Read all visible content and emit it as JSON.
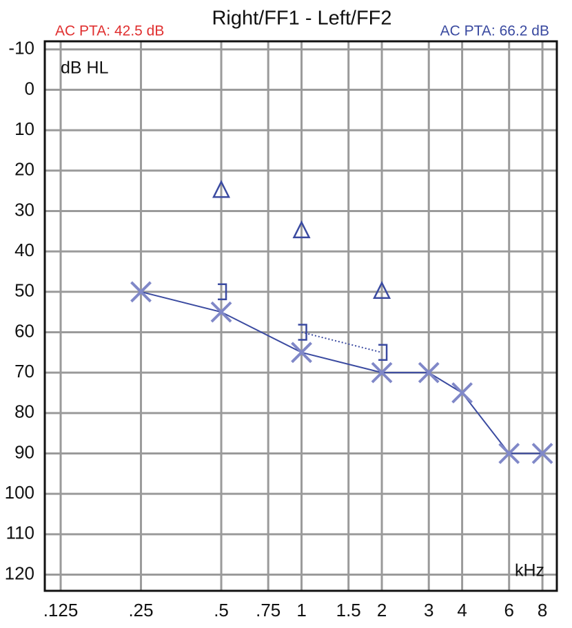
{
  "chart_data": {
    "type": "audiogram",
    "title": "Right/FF1 - Left/FF2",
    "annotations": [
      {
        "text": "AC PTA: 42.5 dB",
        "color": "#e03030"
      },
      {
        "text": "AC PTA: 66.2 dB",
        "color": "#3a4aa0"
      }
    ],
    "y_label": "dB HL",
    "x_label": "kHz",
    "x_log": true,
    "y_inverted": true,
    "grid": true,
    "xlim": [
      0.109,
      9.06
    ],
    "ylim": [
      -12,
      124
    ],
    "xticks": [
      {
        "value": 0.125,
        "label": ".125"
      },
      {
        "value": 0.25,
        "label": ".25"
      },
      {
        "value": 0.5,
        "label": ".5"
      },
      {
        "value": 0.75,
        "label": ".75"
      },
      1,
      1.5,
      2,
      3,
      4,
      6,
      8
    ],
    "yticks": [
      -10,
      0,
      10,
      20,
      30,
      40,
      50,
      60,
      70,
      80,
      90,
      100,
      110,
      120
    ],
    "series": [
      {
        "color": "#3a4aa0",
        "marker": "x",
        "line": "solid",
        "x": [
          0.25,
          0.5,
          1,
          2,
          3,
          4,
          6,
          8
        ],
        "values": [
          50,
          55,
          65,
          70,
          70,
          75,
          90,
          90
        ]
      },
      {
        "color": "#3a4aa0",
        "marker": "bracket",
        "line": "none",
        "x": [
          0.5
        ],
        "values": [
          50
        ]
      },
      {
        "color": "#3a4aa0",
        "marker": "bracket",
        "line": "dotted",
        "x": [
          1,
          2
        ],
        "values": [
          60,
          65
        ]
      },
      {
        "color": "#3a4aa0",
        "marker": "triangle",
        "line": "none",
        "x": [
          0.5,
          1,
          2
        ],
        "values": [
          25,
          35,
          50
        ]
      }
    ]
  }
}
